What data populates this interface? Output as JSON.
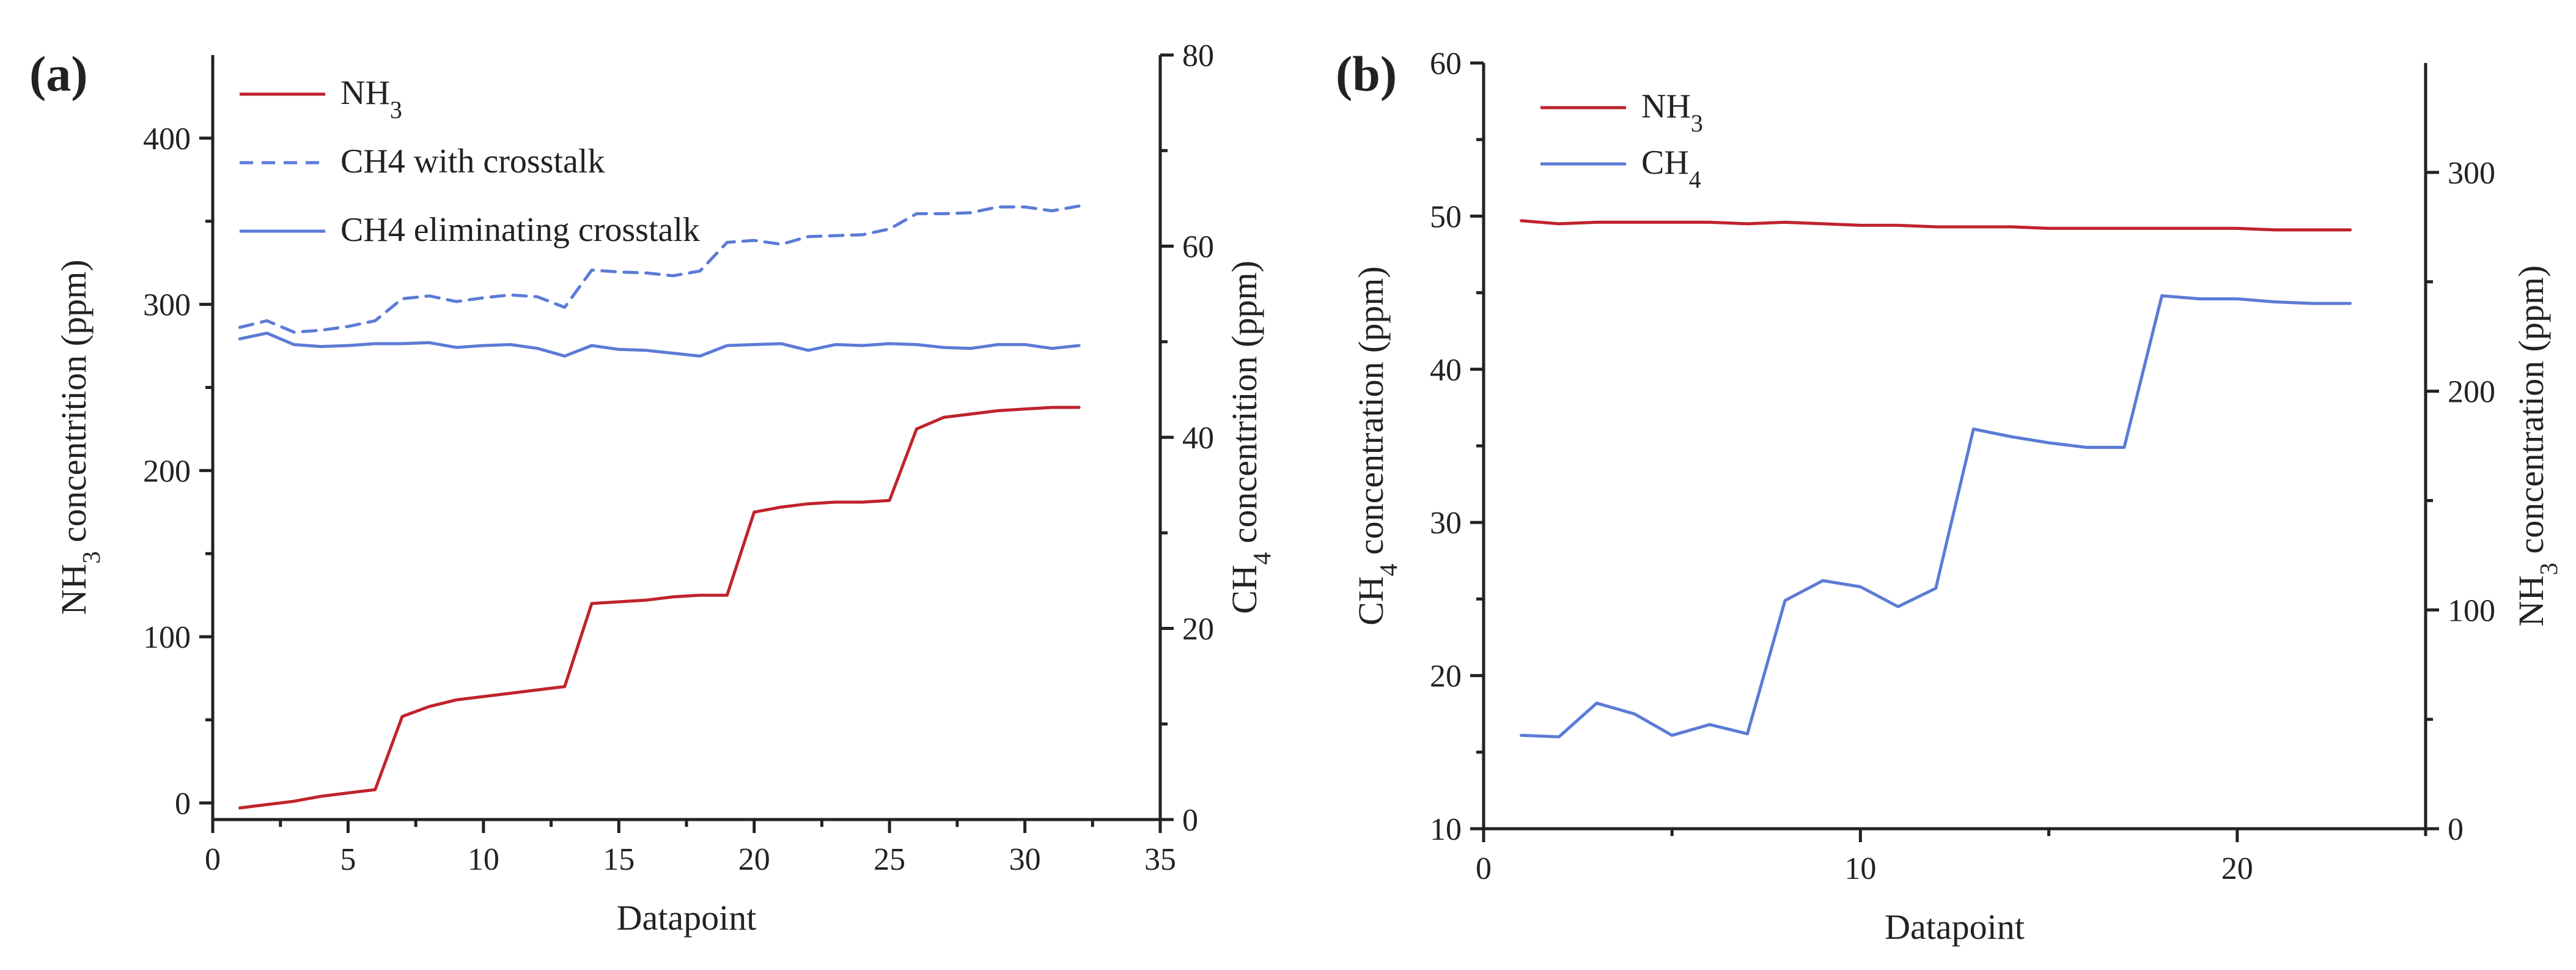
{
  "colors": {
    "nh3": "#c0232c",
    "ch4": "#5b7bd5",
    "axis": "#222222"
  },
  "chart_data": [
    {
      "type": "line",
      "panel": "(a)",
      "xlabel": "Datapoint",
      "ylabel_left": {
        "main": "NH",
        "sub": "3",
        "rest": " concentrition (ppm)"
      },
      "ylabel_right": {
        "main": "CH",
        "sub": "4",
        "rest": " concentrition (ppm)"
      },
      "xlim": [
        0,
        35
      ],
      "ylim_left": [
        -10,
        450
      ],
      "ylim_right": [
        0,
        80
      ],
      "xticks": [
        0,
        5,
        10,
        15,
        20,
        25,
        30,
        35
      ],
      "yticks_left": [
        0,
        100,
        200,
        300,
        400
      ],
      "yticks_right": [
        0,
        20,
        40,
        60,
        80
      ],
      "legend_position": "top-left",
      "series": [
        {
          "name": "NH",
          "name_sub": "3",
          "axis": "left",
          "style": "solid",
          "color": "#c0232c",
          "x": [
            1,
            2,
            3,
            4,
            5,
            6,
            7,
            8,
            9,
            10,
            11,
            12,
            13,
            14,
            15,
            16,
            17,
            18,
            19,
            20,
            21,
            22,
            23,
            24,
            25,
            26,
            27,
            28,
            29,
            30,
            31,
            32
          ],
          "y": [
            -3,
            -1,
            1,
            4,
            6,
            8,
            52,
            58,
            62,
            64,
            66,
            68,
            70,
            120,
            121,
            122,
            124,
            125,
            125,
            175,
            178,
            180,
            181,
            181,
            182,
            225,
            232,
            234,
            236,
            237,
            238,
            238
          ]
        },
        {
          "name": "CH4 with crosstalk",
          "axis": "right",
          "style": "dashed",
          "color": "#5b7bd5",
          "x": [
            1,
            2,
            3,
            4,
            5,
            6,
            7,
            8,
            9,
            10,
            11,
            12,
            13,
            14,
            15,
            16,
            17,
            18,
            19,
            20,
            21,
            22,
            23,
            24,
            25,
            26,
            27,
            28,
            29,
            30,
            31,
            32
          ],
          "y": [
            51.5,
            52.2,
            51.0,
            51.2,
            51.6,
            52.2,
            54.5,
            54.8,
            54.2,
            54.6,
            54.9,
            54.7,
            53.6,
            57.5,
            57.3,
            57.2,
            56.9,
            57.4,
            60.4,
            60.6,
            60.2,
            61.0,
            61.1,
            61.2,
            61.8,
            63.4,
            63.4,
            63.5,
            64.1,
            64.1,
            63.7,
            64.2
          ]
        },
        {
          "name": "CH4 eliminating crosstalk",
          "axis": "right",
          "style": "solid",
          "color": "#5b7bd5",
          "x": [
            1,
            2,
            3,
            4,
            5,
            6,
            7,
            8,
            9,
            10,
            11,
            12,
            13,
            14,
            15,
            16,
            17,
            18,
            19,
            20,
            21,
            22,
            23,
            24,
            25,
            26,
            27,
            28,
            29,
            30,
            31,
            32
          ],
          "y": [
            50.3,
            50.9,
            49.7,
            49.5,
            49.6,
            49.8,
            49.8,
            49.9,
            49.4,
            49.6,
            49.7,
            49.3,
            48.5,
            49.6,
            49.2,
            49.1,
            48.8,
            48.5,
            49.6,
            49.7,
            49.8,
            49.1,
            49.7,
            49.6,
            49.8,
            49.7,
            49.4,
            49.3,
            49.7,
            49.7,
            49.3,
            49.6
          ]
        }
      ]
    },
    {
      "type": "line",
      "panel": "(b)",
      "xlabel": "Datapoint",
      "ylabel_left": {
        "main": "CH",
        "sub": "4",
        "rest": " concentration (ppm)"
      },
      "ylabel_right": {
        "main": "NH",
        "sub": "3",
        "rest": " concentration (ppm)"
      },
      "xlim": [
        0,
        25
      ],
      "ylim_left": [
        10,
        60
      ],
      "ylim_right": [
        0,
        350
      ],
      "xticks": [
        0,
        10,
        20
      ],
      "yticks_left": [
        10,
        20,
        30,
        40,
        50,
        60
      ],
      "yticks_right": [
        0,
        100,
        200,
        300
      ],
      "legend_position": "top-left",
      "series": [
        {
          "name": "NH",
          "name_sub": "3",
          "axis": "left",
          "style": "solid",
          "color": "#c0232c",
          "x": [
            1,
            2,
            3,
            4,
            5,
            6,
            7,
            8,
            9,
            10,
            11,
            12,
            13,
            14,
            15,
            16,
            17,
            18,
            19,
            20,
            21,
            22,
            23
          ],
          "y": [
            49.7,
            49.5,
            49.6,
            49.6,
            49.6,
            49.6,
            49.5,
            49.6,
            49.5,
            49.4,
            49.4,
            49.3,
            49.3,
            49.3,
            49.2,
            49.2,
            49.2,
            49.2,
            49.2,
            49.2,
            49.1,
            49.1,
            49.1
          ]
        },
        {
          "name": "CH",
          "name_sub": "4",
          "axis": "left",
          "style": "solid",
          "color": "#5b7bd5",
          "x": [
            1,
            2,
            3,
            4,
            5,
            6,
            7,
            8,
            9,
            10,
            11,
            12,
            13,
            14,
            15,
            16,
            17,
            18,
            19,
            20,
            21,
            22,
            23
          ],
          "y": [
            16.1,
            16.0,
            18.2,
            17.5,
            16.1,
            16.8,
            16.2,
            24.9,
            26.2,
            25.8,
            24.5,
            25.7,
            36.1,
            35.6,
            35.2,
            34.9,
            34.9,
            44.8,
            44.6,
            44.6,
            44.4,
            44.3,
            44.3
          ]
        }
      ]
    }
  ]
}
